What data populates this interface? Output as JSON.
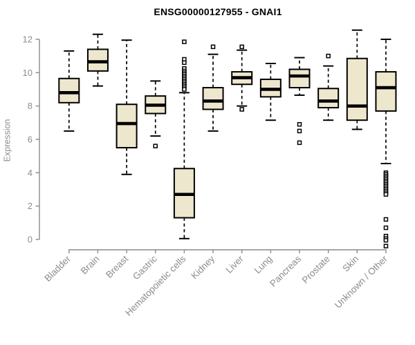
{
  "colors": {
    "background": "#FFFFFF",
    "title": "#000000",
    "axis": "#8A8A8A",
    "tick_label": "#8C8C8C",
    "box_fill": "#EDE7CE",
    "box_border": "#000000",
    "median": "#000000",
    "whisker": "#000000",
    "outlier_fill": "#FFFFFF",
    "outlier_border": "#000000"
  },
  "chart_data": {
    "type": "boxplot",
    "title": "ENSG00000127955 - GNAI1",
    "xlabel": "",
    "ylabel": "Expression",
    "ylim": [
      0,
      12
    ],
    "yticks": [
      0,
      2,
      4,
      6,
      8,
      10,
      12
    ],
    "grid": false,
    "legend": false,
    "categories": [
      "Bladder",
      "Brain",
      "Breast",
      "Gastric",
      "Hematopoietic cells",
      "Kidney",
      "Liver",
      "Lung",
      "Pancreas",
      "Prostate",
      "Skin",
      "Unknown / Other"
    ],
    "boxes": [
      {
        "category": "Bladder",
        "low": 6.5,
        "q1": 8.2,
        "median": 8.8,
        "q3": 9.65,
        "high": 11.3,
        "outliers": []
      },
      {
        "category": "Brain",
        "low": 9.2,
        "q1": 10.1,
        "median": 10.65,
        "q3": 11.4,
        "high": 12.3,
        "outliers": []
      },
      {
        "category": "Breast",
        "low": 3.9,
        "q1": 5.5,
        "median": 6.95,
        "q3": 8.1,
        "high": 11.95,
        "outliers": []
      },
      {
        "category": "Gastric",
        "low": 6.2,
        "q1": 7.55,
        "median": 8.05,
        "q3": 8.6,
        "high": 9.5,
        "outliers": [
          5.6
        ]
      },
      {
        "category": "Hematopoietic cells",
        "low": 0.05,
        "q1": 1.3,
        "median": 2.7,
        "q3": 4.25,
        "high": 8.8,
        "outliers": [
          11.85,
          10.8,
          10.6,
          10.25,
          10.1,
          10.0,
          9.9,
          9.8,
          9.7,
          9.6,
          9.5,
          9.4,
          9.3,
          9.2,
          9.1,
          9.0
        ]
      },
      {
        "category": "Kidney",
        "low": 6.5,
        "q1": 7.8,
        "median": 8.3,
        "q3": 9.1,
        "high": 11.1,
        "outliers": [
          11.55
        ]
      },
      {
        "category": "Liver",
        "low": 8.0,
        "q1": 9.3,
        "median": 9.7,
        "q3": 10.05,
        "high": 11.35,
        "outliers": [
          11.55,
          7.8
        ]
      },
      {
        "category": "Lung",
        "low": 7.15,
        "q1": 8.55,
        "median": 9.0,
        "q3": 9.6,
        "high": 10.55,
        "outliers": []
      },
      {
        "category": "Pancreas",
        "low": 8.65,
        "q1": 9.1,
        "median": 9.8,
        "q3": 10.2,
        "high": 10.9,
        "outliers": [
          6.9,
          6.5,
          5.8
        ]
      },
      {
        "category": "Prostate",
        "low": 7.15,
        "q1": 7.9,
        "median": 8.3,
        "q3": 9.05,
        "high": 10.4,
        "outliers": [
          11.0
        ]
      },
      {
        "category": "Skin",
        "low": 6.6,
        "q1": 7.15,
        "median": 8.0,
        "q3": 10.85,
        "high": 12.55,
        "outliers": []
      },
      {
        "category": "Unknown / Other",
        "low": 4.55,
        "q1": 7.7,
        "median": 9.1,
        "q3": 10.05,
        "high": 12.0,
        "outliers": [
          4.0,
          3.9,
          3.8,
          3.7,
          3.6,
          3.5,
          3.4,
          3.3,
          3.2,
          3.1,
          3.0,
          2.9,
          2.8,
          2.7,
          1.2,
          0.7,
          0.2,
          0.05,
          -0.05,
          -0.4
        ]
      }
    ]
  }
}
